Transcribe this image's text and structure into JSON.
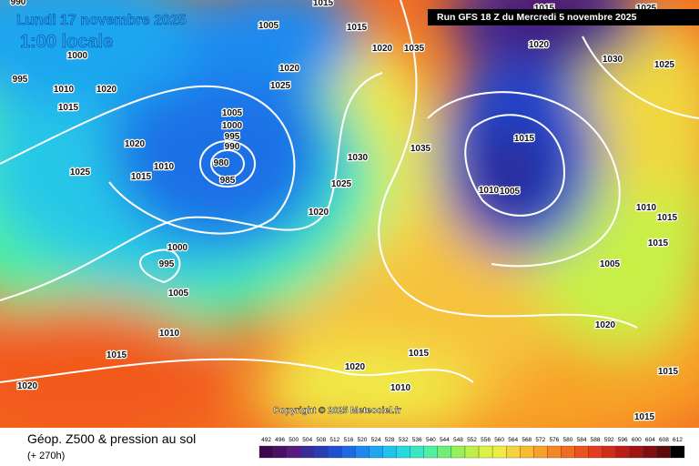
{
  "header": {
    "date": "Lundi 17 novembre 2025",
    "time": "1:00 locale",
    "run": "Run GFS 18 Z du Mercredi 5 novembre 2025"
  },
  "copyright": "Copyright © 2025 Meteociel.fr",
  "footer": {
    "title": "Géop. Z500 & pression au sol",
    "lead": "(+ 270h)"
  },
  "isobar_labels": [
    "990",
    "1015",
    "1005",
    "1015",
    "1020",
    "1035",
    "1000",
    "995",
    "1010",
    "1015",
    "1020",
    "1020",
    "1025",
    "1005",
    "1000",
    "995",
    "990",
    "985",
    "980",
    "1020",
    "1010",
    "1015",
    "1025",
    "1030",
    "1035",
    "1025",
    "1020",
    "1015",
    "1010",
    "1005",
    "1000",
    "995",
    "1005",
    "1010",
    "1015",
    "1020",
    "1020",
    "1015",
    "1010",
    "1020",
    "1015",
    "1015",
    "1025",
    "1030",
    "1025",
    "1015",
    "1020",
    "1010",
    "1015",
    "1015",
    "1005"
  ],
  "scale": {
    "labels": [
      "492",
      "496",
      "500",
      "504",
      "508",
      "512",
      "516",
      "520",
      "524",
      "528",
      "532",
      "536",
      "540",
      "544",
      "548",
      "552",
      "556",
      "560",
      "564",
      "568",
      "572",
      "576",
      "580",
      "584",
      "588",
      "592",
      "596",
      "600",
      "604",
      "608",
      "612"
    ],
    "colors": [
      "#3c0a4a",
      "#4b1064",
      "#5a1a80",
      "#3a2a9a",
      "#2a3cb4",
      "#1e50d2",
      "#1e6ae6",
      "#1e88f0",
      "#1ea6f0",
      "#1ec4ee",
      "#28d8e0",
      "#3ce6c4",
      "#50f0a0",
      "#6ef078",
      "#96f05a",
      "#bcf04a",
      "#dcf046",
      "#f0ea46",
      "#f6d23c",
      "#f8ba30",
      "#f8a028",
      "#f68624",
      "#f26c20",
      "#ec521e",
      "#e43c1c",
      "#d42a1a",
      "#bc1c18",
      "#a01414",
      "#800e10",
      "#5c0a0c",
      "#000000"
    ]
  }
}
